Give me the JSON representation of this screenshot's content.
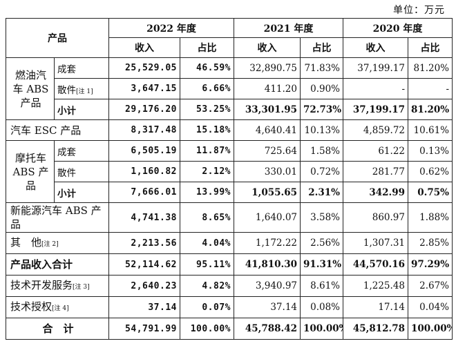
{
  "unit_note": "单位：万元",
  "headers": {
    "product": "产品",
    "y2022": "2022 年度",
    "y2021": "2021 年度",
    "y2020": "2020 年度",
    "revenue": "收入",
    "share": "占比"
  },
  "rows": {
    "car_abs": {
      "category": "燃油汽车 ABS 产品",
      "complete": {
        "label": "成套",
        "r2022": "25,529.05",
        "s2022": "46.59%",
        "r2021": "32,890.75",
        "s2021": "71.83%",
        "r2020": "37,199.17",
        "s2020": "81.20%"
      },
      "parts": {
        "label": "散件",
        "note": "[注 1]",
        "r2022": "3,647.15",
        "s2022": "6.66%",
        "r2021": "411.20",
        "s2021": "0.90%",
        "r2020": "-",
        "s2020": "-"
      },
      "subtotal": {
        "label": "小计",
        "r2022": "29,176.20",
        "s2022": "53.25%",
        "r2021": "33,301.95",
        "s2021": "72.73%",
        "r2020": "37,199.17",
        "s2020": "81.20%"
      }
    },
    "car_esc": {
      "label": "汽车 ESC 产品",
      "r2022": "8,317.48",
      "s2022": "15.18%",
      "r2021": "4,640.41",
      "s2021": "10.13%",
      "r2020": "4,859.72",
      "s2020": "10.61%"
    },
    "moto_abs": {
      "category": "摩托车 ABS 产品",
      "complete": {
        "label": "成套",
        "r2022": "6,505.19",
        "s2022": "11.87%",
        "r2021": "725.64",
        "s2021": "1.58%",
        "r2020": "61.22",
        "s2020": "0.13%"
      },
      "parts": {
        "label": "散件",
        "r2022": "1,160.82",
        "s2022": "2.12%",
        "r2021": "330.01",
        "s2021": "0.72%",
        "r2020": "281.77",
        "s2020": "0.62%"
      },
      "subtotal": {
        "label": "小计",
        "r2022": "7,666.01",
        "s2022": "13.99%",
        "r2021": "1,055.65",
        "s2021": "2.31%",
        "r2020": "342.99",
        "s2020": "0.75%"
      }
    },
    "ev_abs": {
      "label": "新能源汽车 ABS 产品",
      "r2022": "4,741.38",
      "s2022": "8.65%",
      "r2021": "1,640.07",
      "s2021": "3.58%",
      "r2020": "860.97",
      "s2020": "1.88%"
    },
    "other": {
      "label": "其　他",
      "note": "[注 2]",
      "r2022": "2,213.56",
      "s2022": "4.04%",
      "r2021": "1,172.22",
      "s2021": "2.56%",
      "r2020": "1,307.31",
      "s2020": "2.85%"
    },
    "product_total": {
      "label": "产品收入合计",
      "r2022": "52,114.62",
      "s2022": "95.11%",
      "r2021": "41,810.30",
      "s2021": "91.31%",
      "r2020": "44,570.16",
      "s2020": "97.29%"
    },
    "tech_service": {
      "label": "技术开发服务",
      "note": "[注 3]",
      "r2022": "2,640.23",
      "s2022": "4.82%",
      "r2021": "3,940.97",
      "s2021": "8.61%",
      "r2020": "1,225.48",
      "s2020": "2.67%"
    },
    "tech_license": {
      "label": "技术授权",
      "note": "[注 4]",
      "r2022": "37.14",
      "s2022": "0.07%",
      "r2021": "37.14",
      "s2021": "0.08%",
      "r2020": "17.14",
      "s2020": "0.04%"
    },
    "grand_total": {
      "label": "合　计",
      "r2022": "54,791.99",
      "s2022": "100.00%",
      "r2021": "45,788.42",
      "s2021": "100.00%",
      "r2020": "45,812.78",
      "s2020": "100.00%"
    }
  }
}
